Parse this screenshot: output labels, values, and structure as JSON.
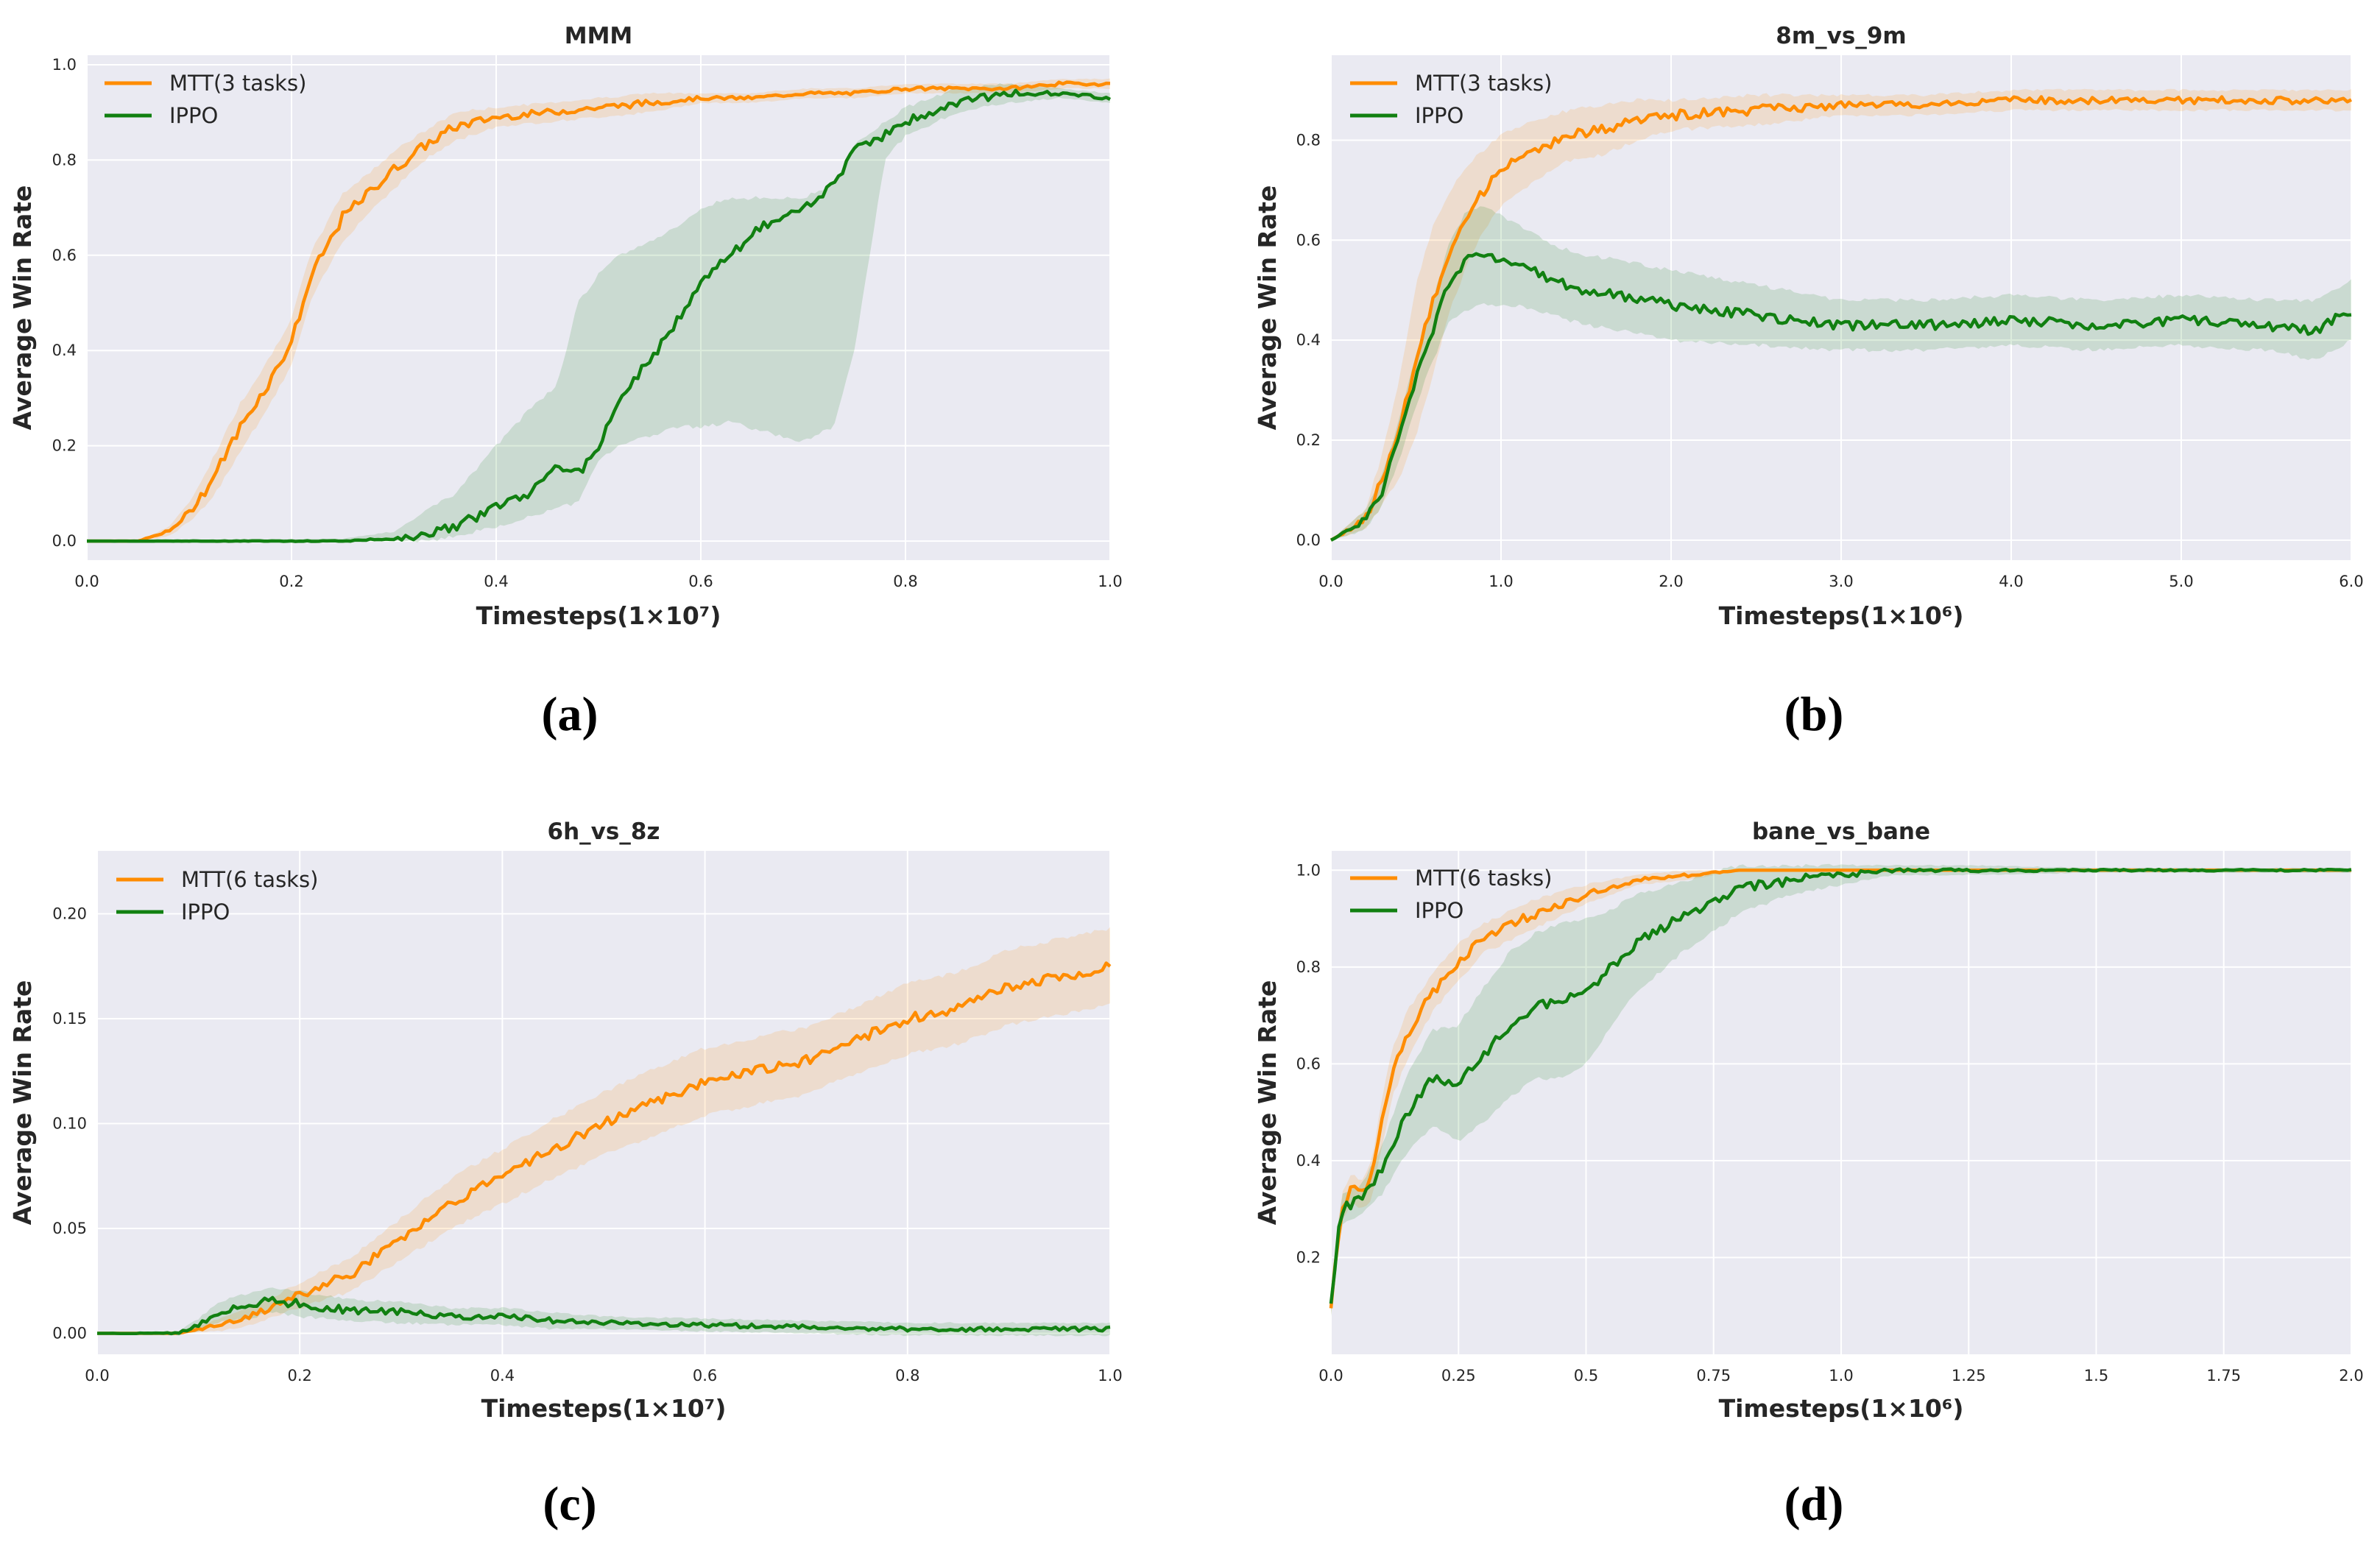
{
  "colors": {
    "mtt": "#ff8c00",
    "ippo": "#118011",
    "plot_bg": "#eaeaf2",
    "grid": "#ffffff"
  },
  "chart_data": [
    {
      "type": "line",
      "panel": "a",
      "caption": "(a)",
      "title": "MMM",
      "xlabel": "Timesteps(1×10⁷)",
      "ylabel": "Average Win Rate",
      "xlim": [
        0,
        1.0
      ],
      "ylim": [
        -0.04,
        1.02
      ],
      "xticks": [
        0.0,
        0.2,
        0.4,
        0.6,
        0.8,
        1.0
      ],
      "xtick_labels": [
        "0.0",
        "0.2",
        "0.4",
        "0.6",
        "0.8",
        "1.0"
      ],
      "yticks": [
        0.0,
        0.2,
        0.4,
        0.6,
        0.8,
        1.0
      ],
      "ytick_labels": [
        "0.0",
        "0.2",
        "0.4",
        "0.6",
        "0.8",
        "1.0"
      ],
      "legend_loc": "upper-left",
      "series": [
        {
          "name": "MTT(3 tasks)",
          "color_key": "mtt",
          "x": [
            0,
            0.05,
            0.08,
            0.1,
            0.12,
            0.15,
            0.18,
            0.2,
            0.22,
            0.25,
            0.28,
            0.3,
            0.33,
            0.36,
            0.4,
            0.45,
            0.5,
            0.55,
            0.6,
            0.65,
            0.7,
            0.75,
            0.8,
            0.85,
            0.9,
            0.95,
            1.0
          ],
          "y": [
            0,
            0,
            0.02,
            0.06,
            0.12,
            0.24,
            0.34,
            0.42,
            0.56,
            0.68,
            0.74,
            0.78,
            0.83,
            0.87,
            0.89,
            0.9,
            0.91,
            0.92,
            0.93,
            0.93,
            0.94,
            0.94,
            0.95,
            0.95,
            0.95,
            0.96,
            0.96
          ],
          "band": [
            0,
            0,
            0.01,
            0.02,
            0.04,
            0.05,
            0.05,
            0.05,
            0.05,
            0.05,
            0.04,
            0.04,
            0.03,
            0.03,
            0.02,
            0.02,
            0.02,
            0.02,
            0.01,
            0.01,
            0.01,
            0.01,
            0.01,
            0.01,
            0.01,
            0.01,
            0.01
          ]
        },
        {
          "name": "IPPO",
          "color_key": "ippo",
          "x": [
            0,
            0.25,
            0.3,
            0.33,
            0.36,
            0.4,
            0.43,
            0.46,
            0.48,
            0.5,
            0.52,
            0.55,
            0.58,
            0.6,
            0.63,
            0.66,
            0.7,
            0.73,
            0.75,
            0.78,
            0.8,
            0.85,
            0.9,
            0.95,
            1.0
          ],
          "y": [
            0,
            0,
            0.005,
            0.01,
            0.03,
            0.07,
            0.1,
            0.16,
            0.14,
            0.2,
            0.3,
            0.38,
            0.47,
            0.55,
            0.6,
            0.66,
            0.7,
            0.75,
            0.82,
            0.85,
            0.88,
            0.92,
            0.94,
            0.94,
            0.93
          ],
          "band_low": [
            0,
            0,
            0,
            0,
            0.01,
            0.03,
            0.05,
            0.07,
            0.08,
            0.17,
            0.2,
            0.22,
            0.24,
            0.24,
            0.25,
            0.23,
            0.21,
            0.24,
            0.4,
            0.8,
            0.85,
            0.9,
            0.92,
            0.93,
            0.92
          ],
          "band_high": [
            0,
            0.005,
            0.02,
            0.06,
            0.1,
            0.2,
            0.27,
            0.33,
            0.5,
            0.56,
            0.6,
            0.63,
            0.66,
            0.7,
            0.72,
            0.72,
            0.72,
            0.75,
            0.83,
            0.88,
            0.91,
            0.95,
            0.96,
            0.95,
            0.94
          ]
        }
      ]
    },
    {
      "type": "line",
      "panel": "b",
      "caption": "(b)",
      "title": "8m_vs_9m",
      "xlabel": "Timesteps(1×10⁶)",
      "ylabel": "Average Win Rate",
      "xlim": [
        0,
        6.0
      ],
      "ylim": [
        -0.04,
        0.97
      ],
      "xticks": [
        0.0,
        1.0,
        2.0,
        3.0,
        4.0,
        5.0,
        6.0
      ],
      "xtick_labels": [
        "0.0",
        "1.0",
        "2.0",
        "3.0",
        "4.0",
        "5.0",
        "6.0"
      ],
      "yticks": [
        0.0,
        0.2,
        0.4,
        0.6,
        0.8
      ],
      "ytick_labels": [
        "0.0",
        "0.2",
        "0.4",
        "0.6",
        "0.8"
      ],
      "legend_loc": "upper-left",
      "series": [
        {
          "name": "MTT(3 tasks)",
          "color_key": "mtt",
          "x": [
            0,
            0.2,
            0.3,
            0.4,
            0.5,
            0.6,
            0.7,
            0.8,
            0.9,
            1.0,
            1.2,
            1.4,
            1.6,
            1.8,
            2.0,
            2.5,
            3.0,
            3.5,
            4.0,
            4.5,
            5.0,
            5.5,
            6.0
          ],
          "y": [
            0,
            0.04,
            0.12,
            0.22,
            0.36,
            0.48,
            0.58,
            0.65,
            0.7,
            0.74,
            0.78,
            0.81,
            0.82,
            0.84,
            0.85,
            0.86,
            0.87,
            0.87,
            0.88,
            0.88,
            0.88,
            0.88,
            0.88
          ],
          "band": [
            0,
            0.02,
            0.05,
            0.1,
            0.15,
            0.15,
            0.12,
            0.1,
            0.08,
            0.07,
            0.06,
            0.05,
            0.05,
            0.04,
            0.03,
            0.03,
            0.02,
            0.02,
            0.02,
            0.02,
            0.02,
            0.02,
            0.02
          ]
        },
        {
          "name": "IPPO",
          "color_key": "ippo",
          "x": [
            0,
            0.2,
            0.3,
            0.4,
            0.5,
            0.6,
            0.7,
            0.8,
            0.9,
            1.0,
            1.1,
            1.3,
            1.5,
            1.7,
            2.0,
            2.5,
            3.0,
            3.5,
            4.0,
            4.5,
            5.0,
            5.5,
            5.8,
            6.0
          ],
          "y": [
            0,
            0.04,
            0.1,
            0.2,
            0.32,
            0.42,
            0.52,
            0.56,
            0.57,
            0.56,
            0.55,
            0.52,
            0.5,
            0.49,
            0.47,
            0.45,
            0.43,
            0.43,
            0.44,
            0.43,
            0.44,
            0.43,
            0.42,
            0.46
          ],
          "band": [
            0,
            0.02,
            0.03,
            0.04,
            0.05,
            0.06,
            0.08,
            0.1,
            0.1,
            0.09,
            0.08,
            0.07,
            0.07,
            0.07,
            0.07,
            0.06,
            0.05,
            0.05,
            0.05,
            0.05,
            0.05,
            0.05,
            0.06,
            0.06
          ]
        }
      ]
    },
    {
      "type": "line",
      "panel": "c",
      "caption": "(c)",
      "title": "6h_vs_8z",
      "xlabel": "Timesteps(1×10⁷)",
      "ylabel": "Average Win Rate",
      "xlim": [
        0,
        1.0
      ],
      "ylim": [
        -0.01,
        0.23
      ],
      "xticks": [
        0.0,
        0.2,
        0.4,
        0.6,
        0.8,
        1.0
      ],
      "xtick_labels": [
        "0.0",
        "0.2",
        "0.4",
        "0.6",
        "0.8",
        "1.0"
      ],
      "yticks": [
        0.0,
        0.05,
        0.1,
        0.15,
        0.2
      ],
      "ytick_labels": [
        "0.00",
        "0.05",
        "0.10",
        "0.15",
        "0.20"
      ],
      "legend_loc": "upper-left",
      "series": [
        {
          "name": "MTT(6 tasks)",
          "color_key": "mtt",
          "x": [
            0,
            0.08,
            0.12,
            0.15,
            0.18,
            0.2,
            0.25,
            0.3,
            0.35,
            0.4,
            0.45,
            0.5,
            0.55,
            0.6,
            0.65,
            0.7,
            0.75,
            0.8,
            0.85,
            0.9,
            0.95,
            1.0
          ],
          "y": [
            0,
            0,
            0.004,
            0.008,
            0.014,
            0.018,
            0.028,
            0.045,
            0.062,
            0.075,
            0.088,
            0.1,
            0.11,
            0.12,
            0.125,
            0.13,
            0.14,
            0.15,
            0.155,
            0.165,
            0.17,
            0.175
          ],
          "band": [
            0,
            0,
            0.003,
            0.004,
            0.005,
            0.006,
            0.008,
            0.01,
            0.012,
            0.013,
            0.014,
            0.015,
            0.016,
            0.016,
            0.016,
            0.016,
            0.016,
            0.017,
            0.017,
            0.018,
            0.018,
            0.018
          ]
        },
        {
          "name": "IPPO",
          "color_key": "ippo",
          "x": [
            0,
            0.08,
            0.1,
            0.12,
            0.15,
            0.17,
            0.2,
            0.25,
            0.3,
            0.35,
            0.4,
            0.45,
            0.5,
            0.6,
            0.7,
            0.8,
            0.9,
            1.0
          ],
          "y": [
            0,
            0,
            0.004,
            0.01,
            0.013,
            0.016,
            0.014,
            0.011,
            0.01,
            0.008,
            0.008,
            0.006,
            0.005,
            0.004,
            0.003,
            0.002,
            0.002,
            0.002
          ],
          "band": [
            0,
            0.001,
            0.003,
            0.005,
            0.006,
            0.006,
            0.006,
            0.005,
            0.005,
            0.004,
            0.004,
            0.004,
            0.003,
            0.003,
            0.003,
            0.003,
            0.003,
            0.003
          ]
        }
      ]
    },
    {
      "type": "line",
      "panel": "d",
      "caption": "(d)",
      "title": "bane_vs_bane",
      "xlabel": "Timesteps(1×10⁶)",
      "ylabel": "Average Win Rate",
      "xlim": [
        0,
        2.0
      ],
      "ylim": [
        0.0,
        1.04
      ],
      "xticks": [
        0.0,
        0.25,
        0.5,
        0.75,
        1.0,
        1.25,
        1.5,
        1.75,
        2.0
      ],
      "xtick_labels": [
        "0.0",
        "0.25",
        "0.5",
        "0.75",
        "1.0",
        "1.25",
        "1.5",
        "1.75",
        "2.0"
      ],
      "yticks": [
        0.2,
        0.4,
        0.6,
        0.8,
        1.0
      ],
      "ytick_labels": [
        "0.2",
        "0.4",
        "0.6",
        "0.8",
        "1.0"
      ],
      "legend_loc": "upper-left",
      "series": [
        {
          "name": "MTT(6 tasks)",
          "color_key": "mtt",
          "x": [
            0,
            0.02,
            0.04,
            0.06,
            0.08,
            0.1,
            0.12,
            0.15,
            0.2,
            0.25,
            0.3,
            0.4,
            0.5,
            0.6,
            0.7,
            0.8,
            0.9,
            1.0,
            1.25,
            1.5,
            1.75,
            2.0
          ],
          "y": [
            0.1,
            0.3,
            0.34,
            0.33,
            0.36,
            0.48,
            0.58,
            0.66,
            0.75,
            0.81,
            0.86,
            0.91,
            0.95,
            0.98,
            0.99,
            1.0,
            1.0,
            1.0,
            1.0,
            1.0,
            1.0,
            1.0
          ],
          "band": [
            0.02,
            0.03,
            0.03,
            0.03,
            0.04,
            0.05,
            0.05,
            0.05,
            0.04,
            0.04,
            0.03,
            0.03,
            0.02,
            0.01,
            0.01,
            0,
            0,
            0,
            0,
            0,
            0,
            0
          ]
        },
        {
          "name": "IPPO",
          "color_key": "ippo",
          "x": [
            0,
            0.02,
            0.04,
            0.06,
            0.1,
            0.15,
            0.2,
            0.25,
            0.3,
            0.35,
            0.4,
            0.45,
            0.5,
            0.55,
            0.6,
            0.7,
            0.8,
            0.9,
            1.0,
            1.1,
            1.25,
            1.5,
            1.75,
            2.0
          ],
          "y": [
            0.1,
            0.3,
            0.31,
            0.32,
            0.38,
            0.5,
            0.57,
            0.56,
            0.62,
            0.68,
            0.72,
            0.73,
            0.75,
            0.8,
            0.85,
            0.91,
            0.96,
            0.98,
            0.99,
            1.0,
            1.0,
            1.0,
            1.0,
            1.0
          ],
          "band": [
            0.02,
            0.03,
            0.03,
            0.03,
            0.05,
            0.08,
            0.1,
            0.12,
            0.14,
            0.15,
            0.15,
            0.16,
            0.15,
            0.12,
            0.1,
            0.07,
            0.05,
            0.03,
            0.02,
            0.01,
            0.01,
            0.005,
            0.005,
            0.005
          ]
        }
      ]
    }
  ]
}
